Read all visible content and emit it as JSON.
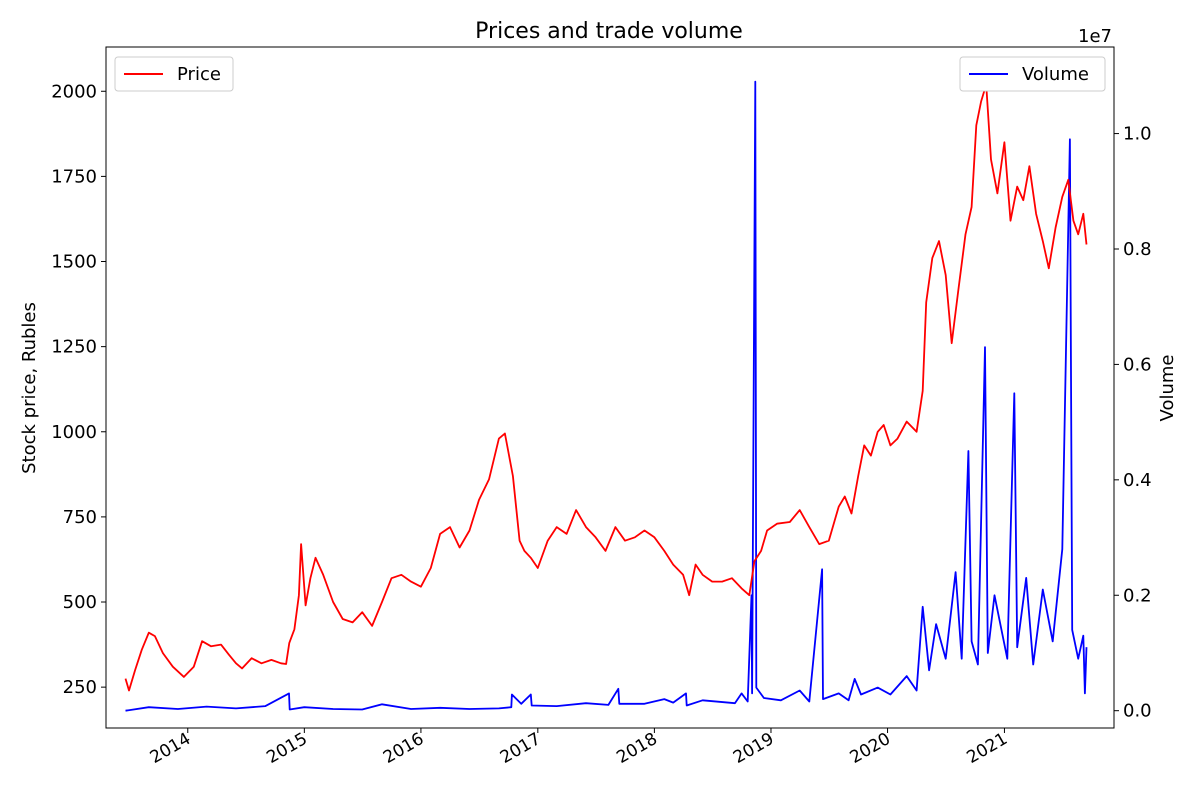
{
  "chart_data": {
    "type": "line",
    "title": "Prices and trade volume",
    "x_tick_labels": [
      "2014",
      "2015",
      "2016",
      "2017",
      "2018",
      "2019",
      "2020",
      "2021"
    ],
    "x_range": [
      "2013-04-20",
      "2021-12-10"
    ],
    "left_axis": {
      "label": "Stock price, Rubles",
      "ylim": [
        130,
        2130
      ],
      "ticks": [
        250,
        500,
        750,
        1000,
        1250,
        1500,
        1750,
        2000
      ]
    },
    "right_axis": {
      "label": "Volume",
      "offset_text": "1e7",
      "ylim": [
        -300000,
        11500000
      ],
      "ticks": [
        0,
        2000000,
        4000000,
        6000000,
        8000000,
        10000000
      ],
      "tick_labels": [
        "0.0",
        "0.2",
        "0.4",
        "0.6",
        "0.8",
        "1.0"
      ]
    },
    "grid": false,
    "legend": [
      {
        "label": "Price",
        "placement": "top-left",
        "color": "#ff0000"
      },
      {
        "label": "Volume",
        "placement": "top-right",
        "color": "#0000ff"
      }
    ],
    "series": [
      {
        "name": "Price",
        "axis": "left",
        "color": "#ff0000",
        "points": [
          [
            "2013-06-20",
            275
          ],
          [
            "2013-07-01",
            240
          ],
          [
            "2013-07-20",
            300
          ],
          [
            "2013-08-10",
            360
          ],
          [
            "2013-09-01",
            410
          ],
          [
            "2013-09-20",
            400
          ],
          [
            "2013-10-15",
            350
          ],
          [
            "2013-11-15",
            310
          ],
          [
            "2013-12-20",
            280
          ],
          [
            "2014-01-20",
            310
          ],
          [
            "2014-02-15",
            385
          ],
          [
            "2014-03-15",
            370
          ],
          [
            "2014-04-15",
            375
          ],
          [
            "2014-05-10",
            345
          ],
          [
            "2014-06-01",
            320
          ],
          [
            "2014-06-20",
            305
          ],
          [
            "2014-07-20",
            335
          ],
          [
            "2014-08-20",
            320
          ],
          [
            "2014-09-20",
            330
          ],
          [
            "2014-10-20",
            320
          ],
          [
            "2014-11-05",
            318
          ],
          [
            "2014-11-15",
            380
          ],
          [
            "2014-12-01",
            420
          ],
          [
            "2014-12-15",
            520
          ],
          [
            "2014-12-22",
            670
          ],
          [
            "2015-01-05",
            490
          ],
          [
            "2015-01-20",
            570
          ],
          [
            "2015-02-05",
            630
          ],
          [
            "2015-03-01",
            580
          ],
          [
            "2015-04-01",
            500
          ],
          [
            "2015-05-01",
            450
          ],
          [
            "2015-06-01",
            440
          ],
          [
            "2015-07-01",
            470
          ],
          [
            "2015-08-01",
            430
          ],
          [
            "2015-09-01",
            500
          ],
          [
            "2015-10-01",
            570
          ],
          [
            "2015-11-01",
            580
          ],
          [
            "2015-12-01",
            560
          ],
          [
            "2016-01-01",
            545
          ],
          [
            "2016-02-01",
            600
          ],
          [
            "2016-03-01",
            700
          ],
          [
            "2016-04-01",
            720
          ],
          [
            "2016-05-01",
            660
          ],
          [
            "2016-06-01",
            710
          ],
          [
            "2016-07-01",
            800
          ],
          [
            "2016-08-01",
            860
          ],
          [
            "2016-09-01",
            980
          ],
          [
            "2016-09-20",
            995
          ],
          [
            "2016-10-15",
            870
          ],
          [
            "2016-11-05",
            680
          ],
          [
            "2016-11-20",
            650
          ],
          [
            "2016-12-10",
            630
          ],
          [
            "2017-01-01",
            600
          ],
          [
            "2017-02-01",
            680
          ],
          [
            "2017-03-01",
            720
          ],
          [
            "2017-04-01",
            700
          ],
          [
            "2017-05-01",
            770
          ],
          [
            "2017-06-01",
            720
          ],
          [
            "2017-07-01",
            690
          ],
          [
            "2017-08-01",
            650
          ],
          [
            "2017-09-01",
            720
          ],
          [
            "2017-10-01",
            680
          ],
          [
            "2017-11-01",
            690
          ],
          [
            "2017-12-01",
            710
          ],
          [
            "2018-01-01",
            690
          ],
          [
            "2018-02-01",
            650
          ],
          [
            "2018-03-01",
            610
          ],
          [
            "2018-04-01",
            580
          ],
          [
            "2018-04-20",
            520
          ],
          [
            "2018-05-10",
            610
          ],
          [
            "2018-06-01",
            580
          ],
          [
            "2018-07-01",
            560
          ],
          [
            "2018-08-01",
            560
          ],
          [
            "2018-09-01",
            570
          ],
          [
            "2018-10-01",
            540
          ],
          [
            "2018-10-25",
            520
          ],
          [
            "2018-11-10",
            620
          ],
          [
            "2018-12-01",
            650
          ],
          [
            "2018-12-20",
            710
          ],
          [
            "2019-01-20",
            730
          ],
          [
            "2019-03-01",
            735
          ],
          [
            "2019-04-01",
            770
          ],
          [
            "2019-05-01",
            720
          ],
          [
            "2019-06-01",
            670
          ],
          [
            "2019-07-01",
            680
          ],
          [
            "2019-08-01",
            780
          ],
          [
            "2019-08-20",
            810
          ],
          [
            "2019-09-10",
            760
          ],
          [
            "2019-10-01",
            870
          ],
          [
            "2019-10-20",
            960
          ],
          [
            "2019-11-10",
            930
          ],
          [
            "2019-12-01",
            1000
          ],
          [
            "2019-12-20",
            1020
          ],
          [
            "2020-01-10",
            960
          ],
          [
            "2020-02-01",
            980
          ],
          [
            "2020-03-01",
            1030
          ],
          [
            "2020-04-01",
            1000
          ],
          [
            "2020-04-20",
            1120
          ],
          [
            "2020-05-01",
            1380
          ],
          [
            "2020-05-20",
            1510
          ],
          [
            "2020-06-10",
            1560
          ],
          [
            "2020-07-01",
            1460
          ],
          [
            "2020-07-20",
            1260
          ],
          [
            "2020-08-10",
            1420
          ],
          [
            "2020-09-01",
            1580
          ],
          [
            "2020-09-20",
            1660
          ],
          [
            "2020-10-05",
            1900
          ],
          [
            "2020-10-20",
            1970
          ],
          [
            "2020-11-05",
            2020
          ],
          [
            "2020-11-20",
            1800
          ],
          [
            "2020-12-10",
            1700
          ],
          [
            "2021-01-01",
            1850
          ],
          [
            "2021-01-20",
            1620
          ],
          [
            "2021-02-10",
            1720
          ],
          [
            "2021-03-01",
            1680
          ],
          [
            "2021-03-20",
            1780
          ],
          [
            "2021-04-10",
            1640
          ],
          [
            "2021-05-01",
            1560
          ],
          [
            "2021-05-20",
            1480
          ],
          [
            "2021-06-10",
            1600
          ],
          [
            "2021-07-01",
            1690
          ],
          [
            "2021-07-20",
            1740
          ],
          [
            "2021-08-05",
            1620
          ],
          [
            "2021-08-20",
            1580
          ],
          [
            "2021-09-05",
            1640
          ],
          [
            "2021-09-15",
            1550
          ]
        ]
      },
      {
        "name": "Volume",
        "axis": "right",
        "color": "#0000ff",
        "points": [
          [
            "2013-06-20",
            0
          ],
          [
            "2013-09-01",
            60000
          ],
          [
            "2013-12-01",
            30000
          ],
          [
            "2014-03-01",
            70000
          ],
          [
            "2014-06-01",
            40000
          ],
          [
            "2014-09-01",
            80000
          ],
          [
            "2014-11-14",
            300000
          ],
          [
            "2014-11-16",
            20000
          ],
          [
            "2015-01-01",
            60000
          ],
          [
            "2015-04-01",
            30000
          ],
          [
            "2015-07-01",
            20000
          ],
          [
            "2015-09-01",
            110000
          ],
          [
            "2015-12-01",
            30000
          ],
          [
            "2016-03-01",
            50000
          ],
          [
            "2016-06-01",
            30000
          ],
          [
            "2016-09-01",
            40000
          ],
          [
            "2016-10-10",
            60000
          ],
          [
            "2016-10-12",
            280000
          ],
          [
            "2016-11-10",
            120000
          ],
          [
            "2016-12-10",
            280000
          ],
          [
            "2016-12-13",
            90000
          ],
          [
            "2017-03-01",
            80000
          ],
          [
            "2017-06-01",
            130000
          ],
          [
            "2017-08-10",
            100000
          ],
          [
            "2017-09-10",
            380000
          ],
          [
            "2017-09-13",
            120000
          ],
          [
            "2017-12-01",
            120000
          ],
          [
            "2018-02-01",
            200000
          ],
          [
            "2018-03-01",
            140000
          ],
          [
            "2018-04-10",
            300000
          ],
          [
            "2018-04-12",
            90000
          ],
          [
            "2018-06-01",
            180000
          ],
          [
            "2018-09-10",
            130000
          ],
          [
            "2018-10-01",
            300000
          ],
          [
            "2018-10-20",
            160000
          ],
          [
            "2018-11-01",
            2000000
          ],
          [
            "2018-11-03",
            300000
          ],
          [
            "2018-11-13",
            10900000
          ],
          [
            "2018-11-16",
            400000
          ],
          [
            "2018-12-10",
            220000
          ],
          [
            "2019-02-01",
            180000
          ],
          [
            "2019-04-01",
            350000
          ],
          [
            "2019-05-01",
            160000
          ],
          [
            "2019-06-10",
            2450000
          ],
          [
            "2019-06-13",
            200000
          ],
          [
            "2019-08-01",
            300000
          ],
          [
            "2019-09-01",
            180000
          ],
          [
            "2019-09-20",
            550000
          ],
          [
            "2019-10-10",
            280000
          ],
          [
            "2019-12-01",
            400000
          ],
          [
            "2020-01-10",
            280000
          ],
          [
            "2020-03-01",
            600000
          ],
          [
            "2020-04-01",
            350000
          ],
          [
            "2020-04-20",
            1800000
          ],
          [
            "2020-05-10",
            700000
          ],
          [
            "2020-06-01",
            1500000
          ],
          [
            "2020-07-01",
            900000
          ],
          [
            "2020-08-01",
            2400000
          ],
          [
            "2020-08-20",
            900000
          ],
          [
            "2020-09-10",
            4500000
          ],
          [
            "2020-09-20",
            1200000
          ],
          [
            "2020-10-10",
            800000
          ],
          [
            "2020-11-01",
            6300000
          ],
          [
            "2020-11-10",
            1000000
          ],
          [
            "2020-12-01",
            2000000
          ],
          [
            "2021-01-10",
            900000
          ],
          [
            "2021-02-01",
            5500000
          ],
          [
            "2021-02-10",
            1100000
          ],
          [
            "2021-03-10",
            2300000
          ],
          [
            "2021-04-01",
            800000
          ],
          [
            "2021-05-01",
            2100000
          ],
          [
            "2021-06-01",
            1200000
          ],
          [
            "2021-07-01",
            2800000
          ],
          [
            "2021-07-25",
            9900000
          ],
          [
            "2021-08-01",
            1400000
          ],
          [
            "2021-08-20",
            900000
          ],
          [
            "2021-09-05",
            1300000
          ],
          [
            "2021-09-10",
            300000
          ],
          [
            "2021-09-15",
            1100000
          ]
        ]
      }
    ]
  }
}
